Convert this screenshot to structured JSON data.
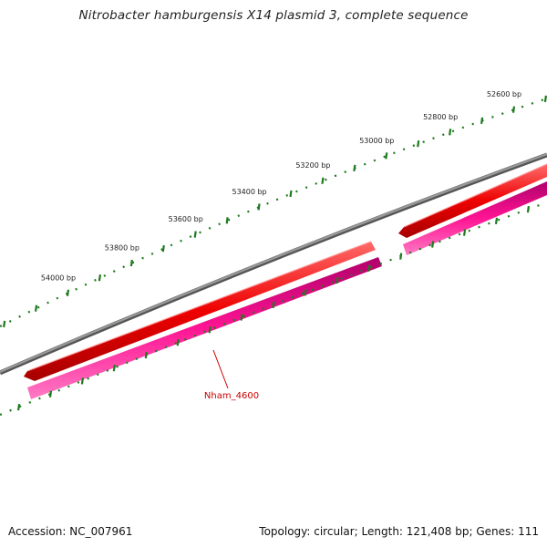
{
  "title": "Nitrobacter hamburgensis X14 plasmid 3, complete sequence",
  "footer": {
    "accession": "Accession: NC_007961",
    "topology": "Topology: circular; Length: 121,408 bp; Genes: 111"
  },
  "ruler": {
    "ticks": [
      {
        "label": "52600 bp",
        "bp": 52600
      },
      {
        "label": "52800 bp",
        "bp": 52800
      },
      {
        "label": "53000 bp",
        "bp": 53000
      },
      {
        "label": "53200 bp",
        "bp": 53200
      },
      {
        "label": "53400 bp",
        "bp": 53400
      },
      {
        "label": "53600 bp",
        "bp": 53600
      },
      {
        "label": "53800 bp",
        "bp": 53800
      },
      {
        "label": "54000 bp",
        "bp": 54000
      }
    ]
  },
  "features": [
    {
      "name": "gene",
      "strand": "-",
      "color": "#ee0000"
    },
    {
      "name": "gene",
      "strand": "-",
      "color": "#ee0000"
    },
    {
      "name": "CDS",
      "strand": "-",
      "color": "#ff1493"
    },
    {
      "name": "CDS",
      "strand": "-",
      "color": "#ff1493"
    }
  ],
  "annotation": {
    "label": "Nham_4600",
    "color": "#cc0000"
  },
  "colors": {
    "backbone": "#888888",
    "ruler": "#1e7a1e",
    "gene": "#ee0000",
    "cds": "#ff1493"
  }
}
